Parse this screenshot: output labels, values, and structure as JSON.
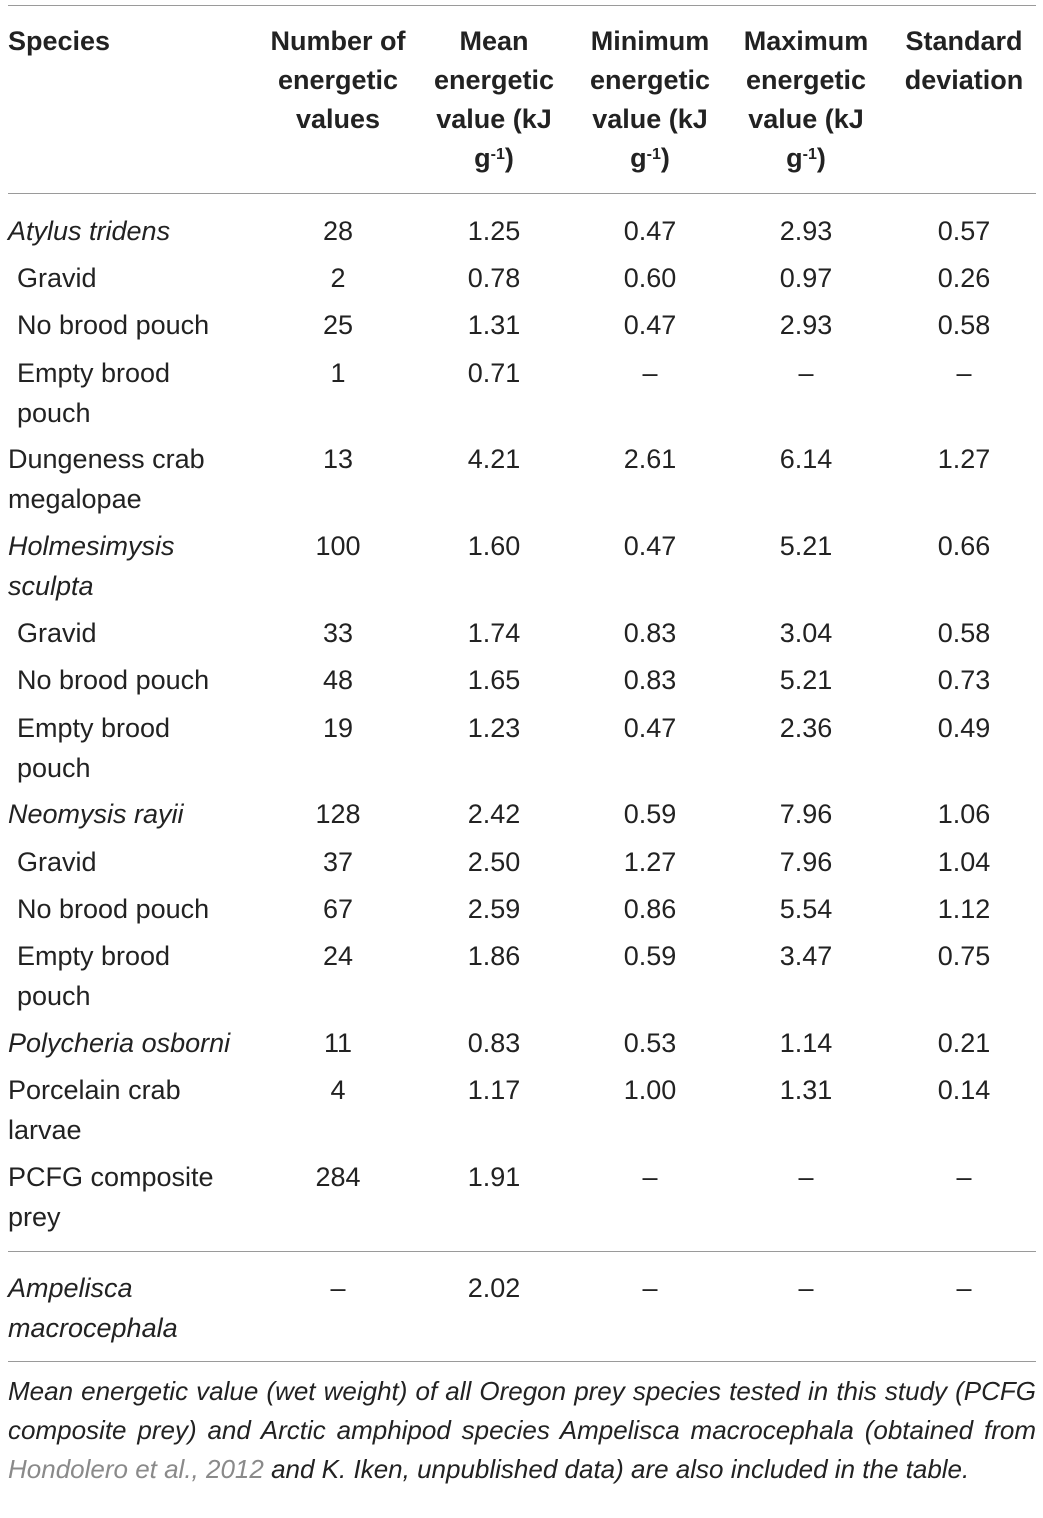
{
  "headers": {
    "species": "Species",
    "number": "Number of\nenergetic\nvalues",
    "mean": "Mean\nenergetic\nvalue (kJ\ng",
    "min": "Minimum\nenergetic\nvalue (kJ\ng",
    "max": "Maximum\nenergetic\nvalue (kJ\ng",
    "unit_sup": "-1",
    "unit_close": ")",
    "sd": "Standard\ndeviation"
  },
  "rows": [
    {
      "label": "Atylus tridens",
      "n": "28",
      "mean": "1.25",
      "min": "0.47",
      "max": "2.93",
      "sd": "0.57"
    },
    {
      "label": "Gravid",
      "n": "2",
      "mean": "0.78",
      "min": "0.60",
      "max": "0.97",
      "sd": "0.26"
    },
    {
      "label": "No brood pouch",
      "n": "25",
      "mean": "1.31",
      "min": "0.47",
      "max": "2.93",
      "sd": "0.58"
    },
    {
      "label": "Empty brood\n pouch",
      "n": "1",
      "mean": "0.71",
      "min": "–",
      "max": "–",
      "sd": "–"
    },
    {
      "label": "Dungeness crab\nmegalopae",
      "n": "13",
      "mean": "4.21",
      "min": "2.61",
      "max": "6.14",
      "sd": "1.27"
    },
    {
      "label": "Holmesimysis\nsculpta",
      "n": "100",
      "mean": "1.60",
      "min": "0.47",
      "max": "5.21",
      "sd": "0.66"
    },
    {
      "label": "Gravid",
      "n": "33",
      "mean": "1.74",
      "min": "0.83",
      "max": "3.04",
      "sd": "0.58"
    },
    {
      "label": "No brood pouch",
      "n": "48",
      "mean": "1.65",
      "min": "0.83",
      "max": "5.21",
      "sd": "0.73"
    },
    {
      "label": "Empty brood\n pouch",
      "n": "19",
      "mean": "1.23",
      "min": "0.47",
      "max": "2.36",
      "sd": "0.49"
    },
    {
      "label": "Neomysis rayii",
      "n": "128",
      "mean": "2.42",
      "min": "0.59",
      "max": "7.96",
      "sd": "1.06"
    },
    {
      "label": "Gravid",
      "n": "37",
      "mean": "2.50",
      "min": "1.27",
      "max": "7.96",
      "sd": "1.04"
    },
    {
      "label": "No brood pouch",
      "n": "67",
      "mean": "2.59",
      "min": "0.86",
      "max": "5.54",
      "sd": "1.12"
    },
    {
      "label": "Empty brood\n pouch",
      "n": "24",
      "mean": "1.86",
      "min": "0.59",
      "max": "3.47",
      "sd": "0.75"
    },
    {
      "label": "Polycheria osborni",
      "n": "11",
      "mean": "0.83",
      "min": "0.53",
      "max": "1.14",
      "sd": "0.21"
    },
    {
      "label": "Porcelain crab\nlarvae",
      "n": "4",
      "mean": "1.17",
      "min": "1.00",
      "max": "1.31",
      "sd": "0.14"
    },
    {
      "label": "PCFG composite\nprey",
      "n": "284",
      "mean": "1.91",
      "min": "–",
      "max": "–",
      "sd": "–"
    },
    {
      "label": "Ampelisca\nmacrocephala",
      "n": "–",
      "mean": "2.02",
      "min": "–",
      "max": "–",
      "sd": "–"
    }
  ],
  "footnote": {
    "part1": "Mean energetic value (wet weight) of all Oregon prey species tested in this study (PCFG composite prey) and Arctic amphipod species Ampelisca macrocephala (obtained from ",
    "link": "Hondolero et al., 2012",
    "part2": " and K. Iken, unpublished data) are also included in the table."
  }
}
